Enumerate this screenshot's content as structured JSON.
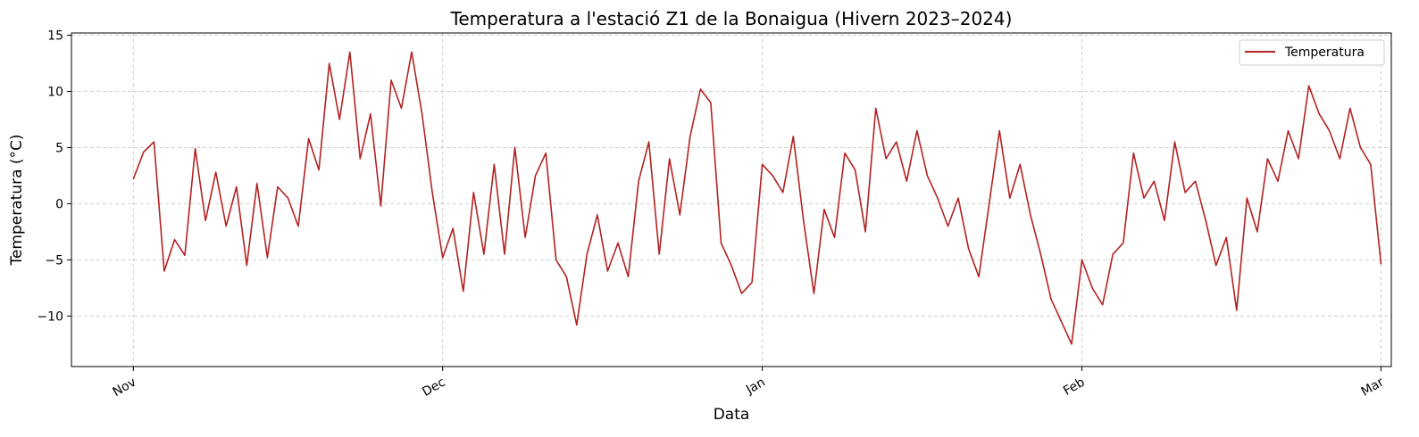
{
  "chart_data": {
    "type": "line",
    "title": "Temperatura a l'estació Z1 de la Bonaigua (Hivern 2023–2024)",
    "xlabel": "Data",
    "ylabel": "Temperatura (°C)",
    "xlim": [
      "2023-10-26",
      "2024-03-02"
    ],
    "ylim": [
      -14.5,
      15.2
    ],
    "x_ticks": [
      {
        "date": "2023-11-01",
        "label": "Nov"
      },
      {
        "date": "2023-12-01",
        "label": "Dec"
      },
      {
        "date": "2024-01-01",
        "label": "Jan"
      },
      {
        "date": "2024-02-01",
        "label": "Feb"
      },
      {
        "date": "2024-03-01",
        "label": "Mar"
      }
    ],
    "y_ticks": [
      -10,
      -5,
      0,
      5,
      10,
      15
    ],
    "grid": true,
    "legend": {
      "position": "top-right"
    },
    "colors": {
      "line": "#b22222"
    },
    "series": [
      {
        "name": "Temperatura",
        "points": [
          [
            "2023-11-01",
            2.2
          ],
          [
            "2023-11-02",
            4.6
          ],
          [
            "2023-11-03",
            5.5
          ],
          [
            "2023-11-04",
            -6.0
          ],
          [
            "2023-11-05",
            -3.2
          ],
          [
            "2023-11-06",
            -4.6
          ],
          [
            "2023-11-07",
            4.9
          ],
          [
            "2023-11-08",
            -1.5
          ],
          [
            "2023-11-09",
            2.8
          ],
          [
            "2023-11-10",
            -2.0
          ],
          [
            "2023-11-11",
            1.5
          ],
          [
            "2023-11-12",
            -5.5
          ],
          [
            "2023-11-13",
            1.8
          ],
          [
            "2023-11-14",
            -4.8
          ],
          [
            "2023-11-15",
            1.5
          ],
          [
            "2023-11-16",
            0.5
          ],
          [
            "2023-11-17",
            -2.0
          ],
          [
            "2023-11-18",
            5.8
          ],
          [
            "2023-11-19",
            3.0
          ],
          [
            "2023-11-20",
            12.5
          ],
          [
            "2023-11-21",
            7.5
          ],
          [
            "2023-11-22",
            13.5
          ],
          [
            "2023-11-23",
            4.0
          ],
          [
            "2023-11-24",
            8.0
          ],
          [
            "2023-11-25",
            -0.2
          ],
          [
            "2023-11-26",
            11.0
          ],
          [
            "2023-11-27",
            8.5
          ],
          [
            "2023-11-28",
            13.5
          ],
          [
            "2023-11-29",
            8.0
          ],
          [
            "2023-11-30",
            1.0
          ],
          [
            "2023-12-01",
            -4.8
          ],
          [
            "2023-12-02",
            -2.2
          ],
          [
            "2023-12-03",
            -7.8
          ],
          [
            "2023-12-04",
            1.0
          ],
          [
            "2023-12-05",
            -4.5
          ],
          [
            "2023-12-06",
            3.5
          ],
          [
            "2023-12-07",
            -4.5
          ],
          [
            "2023-12-08",
            5.0
          ],
          [
            "2023-12-09",
            -3.0
          ],
          [
            "2023-12-10",
            2.5
          ],
          [
            "2023-12-11",
            4.5
          ],
          [
            "2023-12-12",
            -5.0
          ],
          [
            "2023-12-13",
            -6.5
          ],
          [
            "2023-12-14",
            -10.8
          ],
          [
            "2023-12-15",
            -4.5
          ],
          [
            "2023-12-16",
            -1.0
          ],
          [
            "2023-12-17",
            -6.0
          ],
          [
            "2023-12-18",
            -3.5
          ],
          [
            "2023-12-19",
            -6.5
          ],
          [
            "2023-12-20",
            2.0
          ],
          [
            "2023-12-21",
            5.5
          ],
          [
            "2023-12-22",
            -4.5
          ],
          [
            "2023-12-23",
            4.0
          ],
          [
            "2023-12-24",
            -1.0
          ],
          [
            "2023-12-25",
            6.0
          ],
          [
            "2023-12-26",
            10.2
          ],
          [
            "2023-12-27",
            9.0
          ],
          [
            "2023-12-28",
            -3.5
          ],
          [
            "2023-12-29",
            -5.5
          ],
          [
            "2023-12-30",
            -8.0
          ],
          [
            "2023-12-31",
            -7.0
          ],
          [
            "2024-01-01",
            3.5
          ],
          [
            "2024-01-02",
            2.5
          ],
          [
            "2024-01-03",
            1.0
          ],
          [
            "2024-01-04",
            6.0
          ],
          [
            "2024-01-05",
            -1.5
          ],
          [
            "2024-01-06",
            -8.0
          ],
          [
            "2024-01-07",
            -0.5
          ],
          [
            "2024-01-08",
            -3.0
          ],
          [
            "2024-01-09",
            4.5
          ],
          [
            "2024-01-10",
            3.0
          ],
          [
            "2024-01-11",
            -2.5
          ],
          [
            "2024-01-12",
            8.5
          ],
          [
            "2024-01-13",
            4.0
          ],
          [
            "2024-01-14",
            5.5
          ],
          [
            "2024-01-15",
            2.0
          ],
          [
            "2024-01-16",
            6.5
          ],
          [
            "2024-01-17",
            2.5
          ],
          [
            "2024-01-18",
            0.5
          ],
          [
            "2024-01-19",
            -2.0
          ],
          [
            "2024-01-20",
            0.5
          ],
          [
            "2024-01-21",
            -4.0
          ],
          [
            "2024-01-22",
            -6.5
          ],
          [
            "2024-01-23",
            0.0
          ],
          [
            "2024-01-24",
            6.5
          ],
          [
            "2024-01-25",
            0.5
          ],
          [
            "2024-01-26",
            3.5
          ],
          [
            "2024-01-27",
            -1.0
          ],
          [
            "2024-01-28",
            -4.5
          ],
          [
            "2024-01-29",
            -8.5
          ],
          [
            "2024-01-30",
            -10.5
          ],
          [
            "2024-01-31",
            -12.5
          ],
          [
            "2024-02-01",
            -5.0
          ],
          [
            "2024-02-02",
            -7.5
          ],
          [
            "2024-02-03",
            -9.0
          ],
          [
            "2024-02-04",
            -4.5
          ],
          [
            "2024-02-05",
            -3.5
          ],
          [
            "2024-02-06",
            4.5
          ],
          [
            "2024-02-07",
            0.5
          ],
          [
            "2024-02-08",
            2.0
          ],
          [
            "2024-02-09",
            -1.5
          ],
          [
            "2024-02-10",
            5.5
          ],
          [
            "2024-02-11",
            1.0
          ],
          [
            "2024-02-12",
            2.0
          ],
          [
            "2024-02-13",
            -1.5
          ],
          [
            "2024-02-14",
            -5.5
          ],
          [
            "2024-02-15",
            -3.0
          ],
          [
            "2024-02-16",
            -9.5
          ],
          [
            "2024-02-17",
            0.5
          ],
          [
            "2024-02-18",
            -2.5
          ],
          [
            "2024-02-19",
            4.0
          ],
          [
            "2024-02-20",
            2.0
          ],
          [
            "2024-02-21",
            6.5
          ],
          [
            "2024-02-22",
            4.0
          ],
          [
            "2024-02-23",
            10.5
          ],
          [
            "2024-02-24",
            8.0
          ],
          [
            "2024-02-25",
            6.5
          ],
          [
            "2024-02-26",
            4.0
          ],
          [
            "2024-02-27",
            8.5
          ],
          [
            "2024-02-28",
            5.0
          ],
          [
            "2024-02-29",
            3.5
          ],
          [
            "2024-03-01",
            -5.4
          ]
        ]
      }
    ]
  }
}
